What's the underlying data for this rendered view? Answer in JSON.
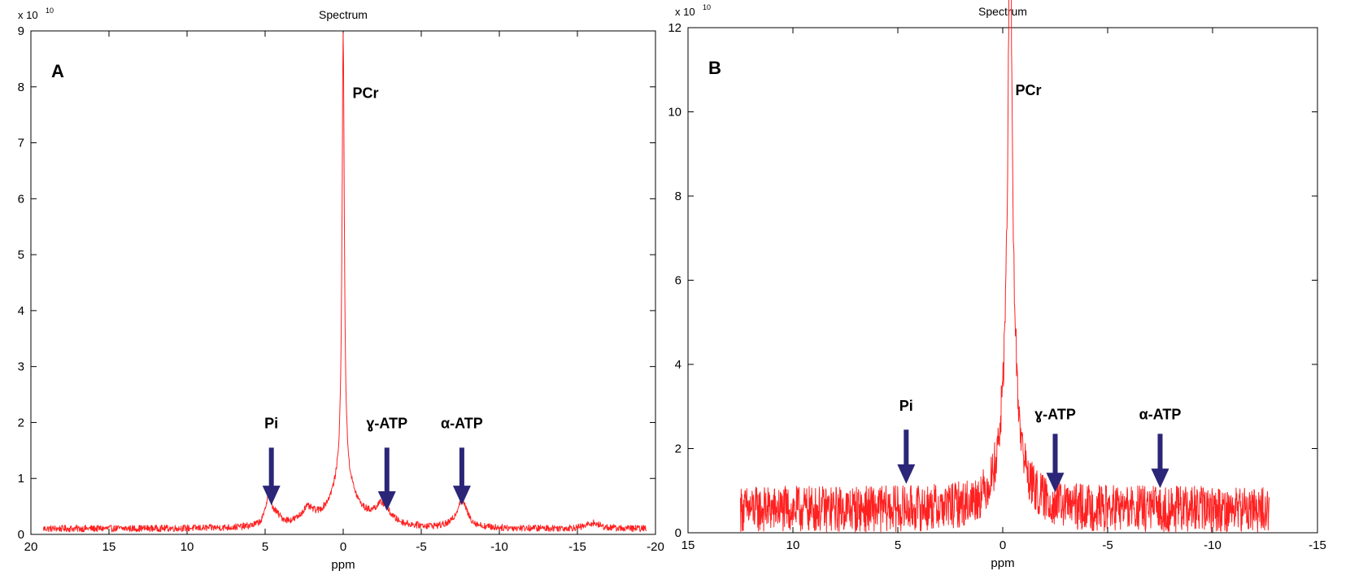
{
  "chart_data": [
    {
      "type": "line",
      "panel_label": "A",
      "title": "Spectrum",
      "xlabel": "ppm",
      "ylabel": "",
      "y_exponent": "x 10",
      "y_exponent_power": "10",
      "xlim": [
        20,
        -20
      ],
      "ylim": [
        0,
        9
      ],
      "xticks": [
        20,
        15,
        10,
        5,
        0,
        -5,
        -10,
        -15,
        -20
      ],
      "yticks": [
        0,
        1,
        2,
        3,
        4,
        5,
        6,
        7,
        8,
        9
      ],
      "x_reversed": true,
      "grid": false,
      "series": [
        {
          "color": "#ff2020",
          "x_range": [
            19.2,
            -19.4
          ],
          "baseline": 0.1,
          "noise": 0.06,
          "peaks": [
            {
              "x": 0.0,
              "height": 7.9,
              "width": 0.09
            },
            {
              "x": 0.0,
              "height": 0.9,
              "width": 0.9
            },
            {
              "x": 4.8,
              "height": 0.45,
              "width": 0.2
            },
            {
              "x": 4.4,
              "height": 0.2,
              "width": 0.5
            },
            {
              "x": 2.3,
              "height": 0.25,
              "width": 0.5
            },
            {
              "x": -2.5,
              "height": 0.35,
              "width": 0.6
            },
            {
              "x": -7.6,
              "height": 0.5,
              "width": 0.4
            },
            {
              "x": -16.0,
              "height": 0.1,
              "width": 0.5
            }
          ]
        }
      ],
      "annotations": [
        {
          "text": "PCr",
          "x": -0.6,
          "y": 7.8,
          "arrow": false
        },
        {
          "text": "Pi",
          "x": 4.6,
          "y": 1.9,
          "arrow": true,
          "arrow_from": 1.55,
          "arrow_to": 0.55
        },
        {
          "text": "ɣ-ATP",
          "x": -2.8,
          "y": 1.9,
          "arrow": true,
          "arrow_from": 1.55,
          "arrow_to": 0.45
        },
        {
          "text": "α-ATP",
          "x": -7.6,
          "y": 1.9,
          "arrow": true,
          "arrow_from": 1.55,
          "arrow_to": 0.55
        }
      ]
    },
    {
      "type": "line",
      "panel_label": "B",
      "title": "Spectrum",
      "xlabel": "ppm",
      "ylabel": "",
      "y_exponent": "x 10",
      "y_exponent_power": "10",
      "xlim": [
        15,
        -15
      ],
      "ylim": [
        0,
        12
      ],
      "xticks": [
        15,
        10,
        5,
        0,
        -5,
        -10,
        -15
      ],
      "yticks": [
        0,
        2,
        4,
        6,
        8,
        10,
        12
      ],
      "x_reversed": true,
      "grid": false,
      "series": [
        {
          "color": "#ff2020",
          "x_range": [
            12.5,
            -12.7
          ],
          "baseline": 0.55,
          "noise": 0.55,
          "peaks": [
            {
              "x": -0.35,
              "height": 10.2,
              "width": 0.06
            },
            {
              "x": -0.35,
              "height": 6.4,
              "width": 0.22
            },
            {
              "x": -0.35,
              "height": 1.2,
              "width": 0.6
            }
          ]
        }
      ],
      "annotations": [
        {
          "text": "PCr",
          "x": -0.6,
          "y": 10.4,
          "arrow": false
        },
        {
          "text": "Pi",
          "x": 4.6,
          "y": 2.9,
          "arrow": true,
          "arrow_from": 2.45,
          "arrow_to": 1.2
        },
        {
          "text": "ɣ-ATP",
          "x": -2.5,
          "y": 2.7,
          "arrow": true,
          "arrow_from": 2.35,
          "arrow_to": 1.0
        },
        {
          "text": "α-ATP",
          "x": -7.5,
          "y": 2.7,
          "arrow": true,
          "arrow_from": 2.35,
          "arrow_to": 1.1
        }
      ]
    }
  ],
  "colors": {
    "spectrum": "#ff2020",
    "arrow": "#2b2678",
    "axis": "#000000",
    "background": "#ffffff"
  }
}
